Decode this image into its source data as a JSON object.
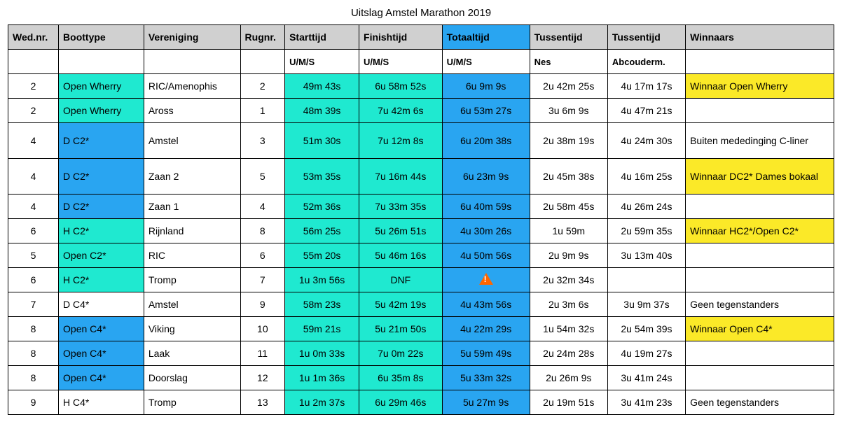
{
  "title": "Uitslag Amstel Marathon 2019",
  "colors": {
    "teal": "#1fe9d0",
    "blue": "#29a5f1",
    "yellow": "#fbe928",
    "headerGrey": "#d0d0d0",
    "white": "#ffffff",
    "border": "#000000"
  },
  "columns": [
    {
      "key": "wednr",
      "label": "Wed.nr.",
      "sub": "",
      "align": "center"
    },
    {
      "key": "boottype",
      "label": "Boottype",
      "sub": ""
    },
    {
      "key": "vereniging",
      "label": "Vereniging",
      "sub": ""
    },
    {
      "key": "rugnr",
      "label": "Rugnr.",
      "sub": "",
      "align": "center"
    },
    {
      "key": "starttijd",
      "label": "Starttijd",
      "sub": "U/M/S",
      "align": "center",
      "headerBg": "teal"
    },
    {
      "key": "finishtijd",
      "label": "Finishtijd",
      "sub": "U/M/S",
      "align": "center",
      "headerBg": "teal"
    },
    {
      "key": "totaaltijd",
      "label": "Totaaltijd",
      "sub": "U/M/S",
      "align": "center",
      "headerBg": "blue",
      "headerBgTop": "blue"
    },
    {
      "key": "tussentijd1",
      "label": "Tussentijd",
      "sub": "Nes",
      "align": "center"
    },
    {
      "key": "tussentijd2",
      "label": "Tussentijd",
      "sub": "Abcouderm.",
      "align": "center"
    },
    {
      "key": "winnaars",
      "label": "Winnaars",
      "sub": ""
    }
  ],
  "rows": [
    {
      "wednr": "2",
      "boottype": "Open Wherry",
      "btBg": "teal",
      "vereniging": "RIC/Amenophis",
      "rugnr": "2",
      "starttijd": "49m 43s",
      "finishtijd": "6u 58m 52s",
      "totaaltijd": "6u 9m 9s",
      "tussentijd1": "2u 42m 25s",
      "tussentijd2": "4u 17m 17s",
      "winnaars": "Winnaar Open Wherry",
      "winBg": "yellow"
    },
    {
      "wednr": "2",
      "boottype": "Open Wherry",
      "btBg": "teal",
      "vereniging": "Aross",
      "rugnr": "1",
      "starttijd": "48m 39s",
      "finishtijd": "7u 42m 6s",
      "totaaltijd": "6u 53m 27s",
      "tussentijd1": "3u 6m 9s",
      "tussentijd2": "4u 47m 21s",
      "winnaars": ""
    },
    {
      "wednr": "4",
      "boottype": "D C2*",
      "btBg": "blue",
      "vereniging": "Amstel",
      "rugnr": "3",
      "starttijd": "51m 30s",
      "finishtijd": "7u 12m 8s",
      "totaaltijd": "6u 20m 38s",
      "tussentijd1": "2u 38m 19s",
      "tussentijd2": "4u 24m 30s",
      "winnaars": "Buiten mededinging C-liner",
      "tall": true
    },
    {
      "wednr": "4",
      "boottype": "D C2*",
      "btBg": "blue",
      "vereniging": "Zaan 2",
      "rugnr": "5",
      "starttijd": "53m 35s",
      "finishtijd": "7u 16m 44s",
      "totaaltijd": "6u 23m 9s",
      "tussentijd1": "2u 45m 38s",
      "tussentijd2": "4u 16m 25s",
      "winnaars": "Winnaar DC2* Dames bokaal",
      "winBg": "yellow",
      "tall": true
    },
    {
      "wednr": "4",
      "boottype": "D C2*",
      "btBg": "blue",
      "vereniging": "Zaan 1",
      "rugnr": "4",
      "starttijd": "52m 36s",
      "finishtijd": "7u 33m 35s",
      "totaaltijd": "6u 40m 59s",
      "tussentijd1": "2u 58m 45s",
      "tussentijd2": "4u 26m 24s",
      "winnaars": ""
    },
    {
      "wednr": "6",
      "boottype": "H C2*",
      "btBg": "teal",
      "vereniging": "Rijnland",
      "rugnr": "8",
      "starttijd": "56m 25s",
      "finishtijd": "5u 26m 51s",
      "totaaltijd": "4u 30m 26s",
      "tussentijd1": "1u 59m",
      "tussentijd2": "2u 59m 35s",
      "winnaars": "Winnaar HC2*/Open C2*",
      "winBg": "yellow"
    },
    {
      "wednr": "5",
      "boottype": "Open C2*",
      "btBg": "teal",
      "vereniging": "RIC",
      "rugnr": "6",
      "starttijd": "55m 20s",
      "finishtijd": "5u 46m 16s",
      "totaaltijd": "4u 50m 56s",
      "tussentijd1": "2u 9m 9s",
      "tussentijd2": "3u 13m 40s",
      "winnaars": ""
    },
    {
      "wednr": "6",
      "boottype": "H C2*",
      "btBg": "teal",
      "vereniging": "Tromp",
      "rugnr": "7",
      "starttijd": "1u 3m 56s",
      "finishtijd": "DNF",
      "totaaltijd": "__WARN__",
      "tussentijd1": "2u 32m 34s",
      "tussentijd2": "",
      "winnaars": ""
    },
    {
      "wednr": "7",
      "boottype": "D C4*",
      "btBg": "",
      "vereniging": "Amstel",
      "rugnr": "9",
      "starttijd": "58m 23s",
      "finishtijd": "5u 42m 19s",
      "totaaltijd": "4u 43m 56s",
      "tussentijd1": "2u 3m 6s",
      "tussentijd2": "3u 9m 37s",
      "winnaars": "Geen tegenstanders"
    },
    {
      "wednr": "8",
      "boottype": "Open C4*",
      "btBg": "blue",
      "vereniging": "Viking",
      "rugnr": "10",
      "starttijd": "59m 21s",
      "finishtijd": "5u 21m 50s",
      "totaaltijd": "4u 22m 29s",
      "tussentijd1": "1u 54m 32s",
      "tussentijd2": "2u 54m 39s",
      "winnaars": "Winnaar Open C4*",
      "winBg": "yellow"
    },
    {
      "wednr": "8",
      "boottype": "Open C4*",
      "btBg": "blue",
      "vereniging": "Laak",
      "rugnr": "11",
      "starttijd": "1u 0m 33s",
      "finishtijd": "7u 0m 22s",
      "totaaltijd": "5u 59m 49s",
      "tussentijd1": "2u 24m 28s",
      "tussentijd2": "4u 19m 27s",
      "winnaars": ""
    },
    {
      "wednr": "8",
      "boottype": "Open C4*",
      "btBg": "blue",
      "vereniging": "Doorslag",
      "rugnr": "12",
      "starttijd": "1u 1m 36s",
      "finishtijd": "6u 35m 8s",
      "totaaltijd": "5u 33m 32s",
      "tussentijd1": "2u 26m 9s",
      "tussentijd2": "3u 41m 24s",
      "winnaars": ""
    },
    {
      "wednr": "9",
      "boottype": "H C4*",
      "btBg": "",
      "vereniging": "Tromp",
      "rugnr": "13",
      "starttijd": "1u 2m 37s",
      "finishtijd": "6u 29m 46s",
      "totaaltijd": "5u 27m 9s",
      "tussentijd1": "2u 19m 51s",
      "tussentijd2": "3u 41m 23s",
      "winnaars": "Geen tegenstanders"
    }
  ],
  "cellBg": {
    "starttijd": "teal",
    "finishtijd": "teal",
    "totaaltijd": "blue"
  }
}
